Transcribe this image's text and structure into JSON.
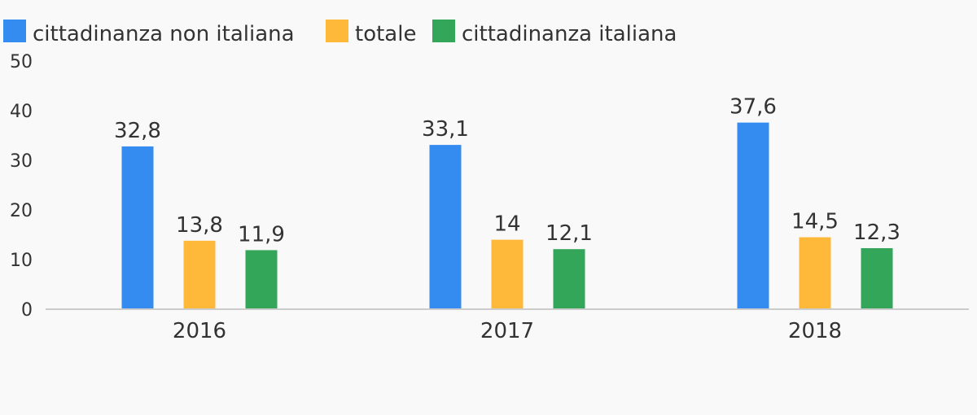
{
  "chart_data": {
    "type": "bar",
    "categories": [
      "2016",
      "2017",
      "2018"
    ],
    "series": [
      {
        "name": "cittadinanza non italiana",
        "color": "#348cf0",
        "values": [
          32.8,
          33.1,
          37.6
        ],
        "labels": [
          "32,8",
          "33,1",
          "37,6"
        ]
      },
      {
        "name": "totale",
        "color": "#ffb93a",
        "values": [
          13.8,
          14,
          14.5
        ],
        "labels": [
          "13,8",
          "14",
          "14,5"
        ]
      },
      {
        "name": "cittadinanza italiana",
        "color": "#34a65a",
        "values": [
          11.9,
          12.1,
          12.3
        ],
        "labels": [
          "11,9",
          "12,1",
          "12,3"
        ]
      }
    ],
    "y_ticks": [
      "0",
      "10",
      "20",
      "30",
      "40",
      "50"
    ],
    "ylim": [
      0,
      50
    ],
    "legend_position": "top-left",
    "grid": false
  }
}
